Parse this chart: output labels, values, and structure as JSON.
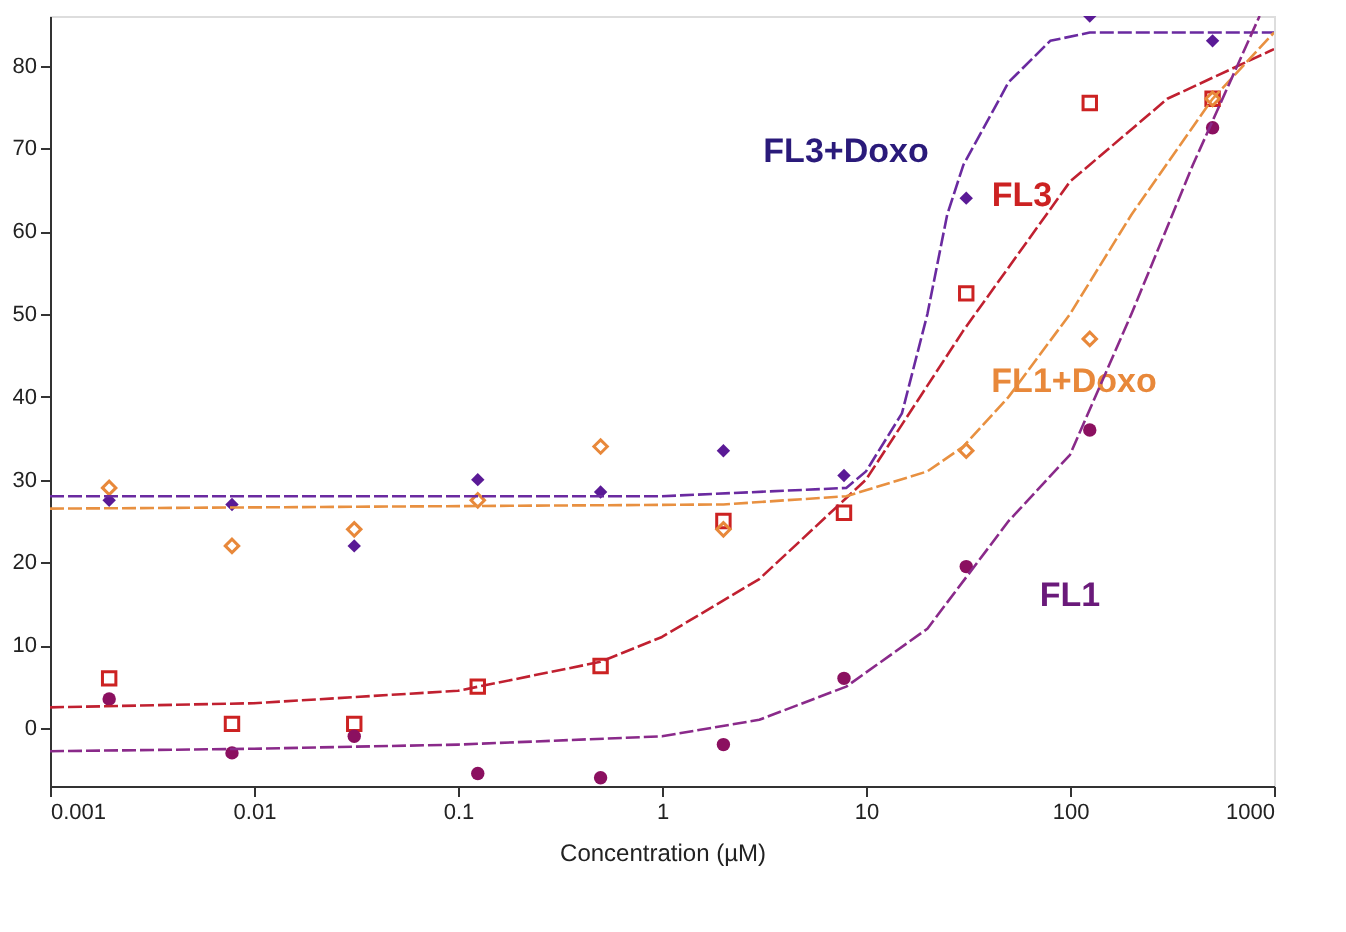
{
  "chart_data": {
    "type": "scatter",
    "xlabel": "Concentration (µM)",
    "log": "x",
    "grid": false,
    "line_style": "dashed",
    "xlim": [
      0.001,
      1000
    ],
    "xticks": [
      0.001,
      0.01,
      0.1,
      1,
      10,
      100,
      1000
    ],
    "ylim": [
      -7,
      86
    ],
    "yticks": [
      0,
      10,
      20,
      30,
      40,
      50,
      60,
      70,
      80
    ],
    "series": [
      {
        "name": "FL3+Doxo",
        "color": "#5a1a96",
        "marker": "diamond",
        "x": [
          0.00195,
          0.0078,
          0.031,
          0.125,
          0.5,
          2,
          7.8,
          31,
          125,
          500
        ],
        "values": [
          27.5,
          27,
          22,
          30,
          28.5,
          33.5,
          30.5,
          64,
          86,
          83
        ]
      },
      {
        "name": "FL3",
        "color": "#cc2222",
        "marker": "square",
        "x": [
          0.00195,
          0.0078,
          0.031,
          0.125,
          0.5,
          2,
          7.8,
          31,
          125,
          500
        ],
        "values": [
          6,
          0.5,
          0.5,
          5,
          7.5,
          25,
          26,
          52.5,
          75.5,
          76
        ]
      },
      {
        "name": "FL1+Doxo",
        "color": "#e8883a",
        "marker": "diamond",
        "x": [
          0.00195,
          0.0078,
          0.031,
          0.125,
          0.5,
          2,
          31,
          125,
          500
        ],
        "values": [
          29,
          22,
          24,
          27.5,
          34,
          24,
          33.5,
          47,
          76
        ]
      },
      {
        "name": "FL1",
        "color": "#8b1060",
        "marker": "circle",
        "x": [
          0.00195,
          0.0078,
          0.031,
          0.125,
          0.5,
          2,
          7.8,
          31,
          125,
          500
        ],
        "values": [
          3.5,
          -3,
          -1,
          -5.5,
          -6,
          -2,
          6,
          19.5,
          36,
          72.5
        ]
      },
      {
        "type": "line",
        "color": "#6a2aa0",
        "x": [
          0.001,
          1,
          8,
          10,
          15,
          20,
          25,
          30,
          50,
          80,
          125,
          1000
        ],
        "values": [
          28,
          28,
          29,
          31,
          38,
          50,
          62,
          68,
          78,
          83,
          84,
          84
        ]
      },
      {
        "type": "line",
        "color": "#c02030",
        "x": [
          0.001,
          0.01,
          0.1,
          0.5,
          1,
          3,
          10,
          30,
          100,
          300,
          1000
        ],
        "values": [
          2.5,
          3,
          4.5,
          8,
          11,
          18,
          30,
          48,
          66,
          76,
          82
        ]
      },
      {
        "type": "line",
        "color": "#e89040",
        "x": [
          0.001,
          2,
          8,
          20,
          30,
          50,
          100,
          200,
          500,
          1000
        ],
        "values": [
          26.5,
          27,
          28,
          31,
          34,
          40,
          50,
          62,
          76,
          84
        ]
      },
      {
        "type": "line",
        "color": "#8a2a8a",
        "x": [
          0.001,
          0.01,
          0.1,
          1,
          3,
          8,
          20,
          50,
          100,
          200,
          400,
          850
        ],
        "values": [
          -2.8,
          -2.5,
          -2,
          -1,
          1,
          5,
          12,
          25,
          33,
          50,
          68,
          86
        ]
      }
    ]
  }
}
